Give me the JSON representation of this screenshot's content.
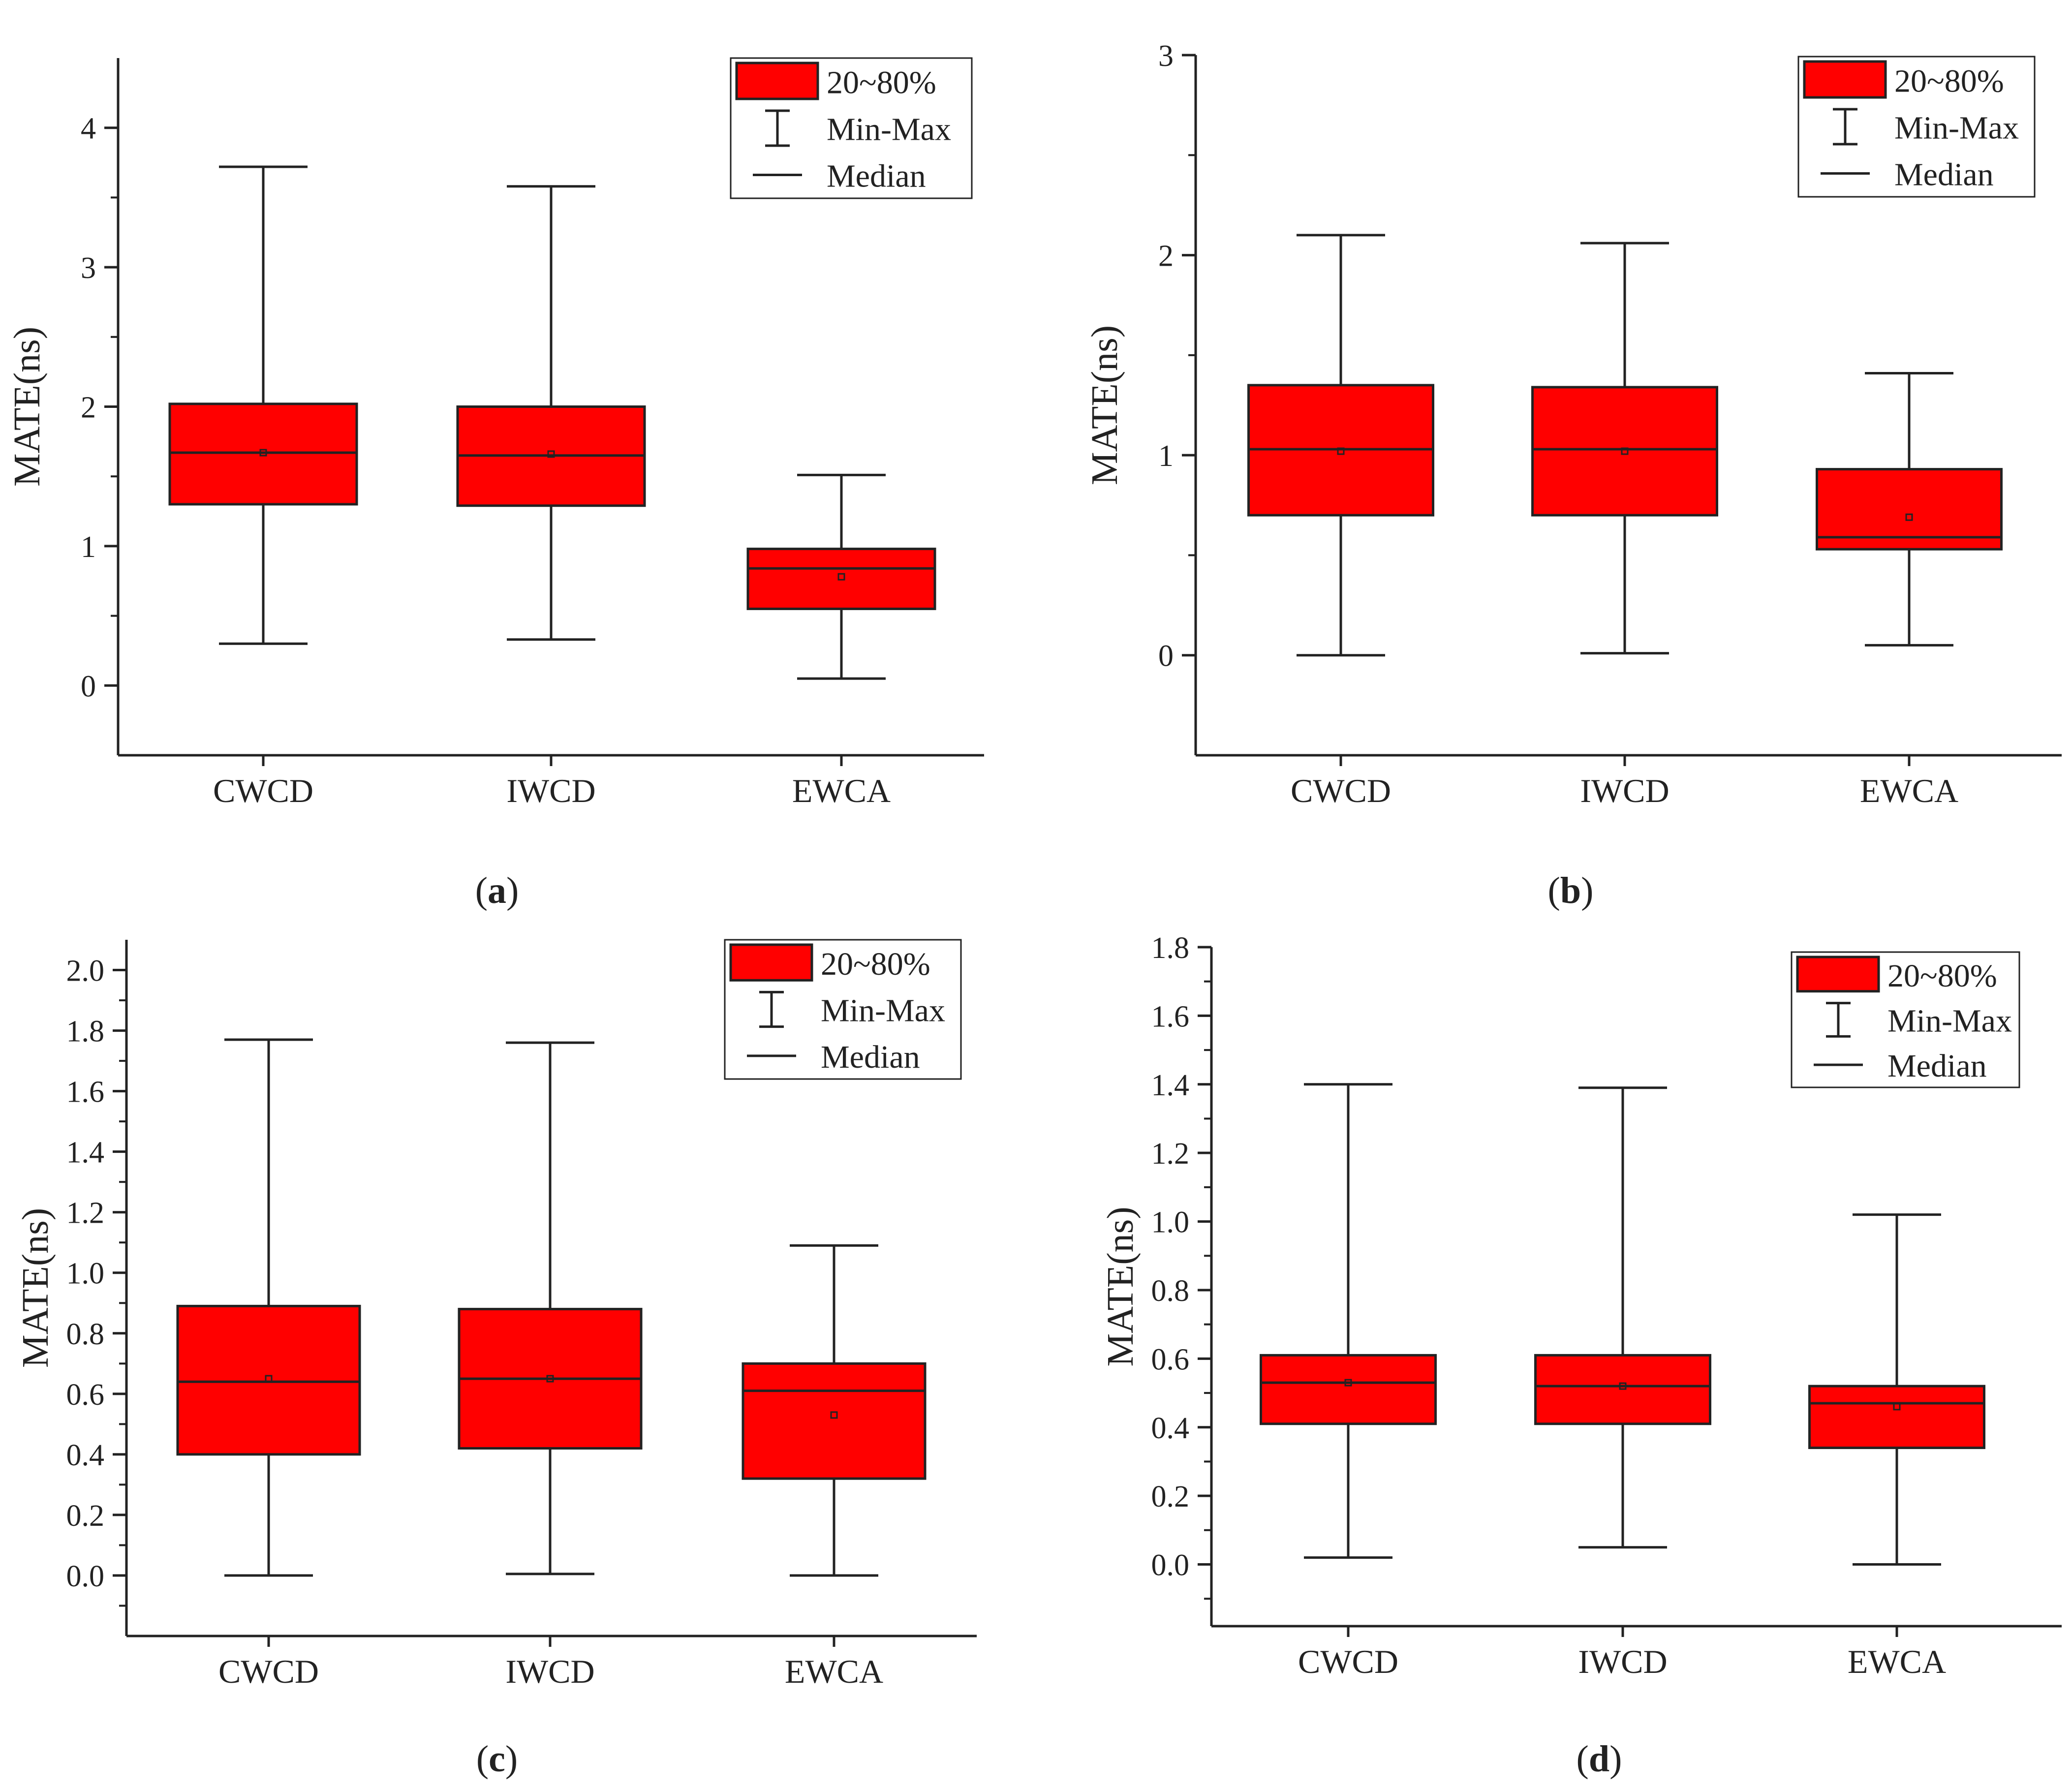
{
  "colors": {
    "box_fill": "#ff0000",
    "stroke": "#222222",
    "background": "#ffffff"
  },
  "chart_data": [
    {
      "type": "box",
      "panel_label": "a",
      "ylabel": "MATE(ns)",
      "xlabel": "",
      "ylim": [
        -0.5,
        4.5
      ],
      "yticks": [
        0,
        1,
        2,
        3,
        4
      ],
      "ytick_labels": [
        "0",
        "1",
        "2",
        "3",
        "4"
      ],
      "categories": [
        "CWCD",
        "IWCD",
        "EWCA"
      ],
      "boxes": [
        {
          "name": "CWCD",
          "min": 0.3,
          "q20": 1.3,
          "median": 1.67,
          "mean": 1.67,
          "q80": 2.02,
          "max": 3.72
        },
        {
          "name": "IWCD",
          "min": 0.33,
          "q20": 1.29,
          "median": 1.65,
          "mean": 1.66,
          "q80": 2.0,
          "max": 3.58
        },
        {
          "name": "EWCA",
          "min": 0.05,
          "q20": 0.55,
          "median": 0.84,
          "mean": 0.78,
          "q80": 0.98,
          "max": 1.51
        }
      ],
      "legend": {
        "position": "top-right",
        "items": [
          "20~80%",
          "Min-Max",
          "Median"
        ]
      }
    },
    {
      "type": "box",
      "panel_label": "b",
      "ylabel": "MATE(ns)",
      "xlabel": "",
      "ylim": [
        -0.5,
        3
      ],
      "yticks": [
        0,
        1,
        2,
        3
      ],
      "ytick_labels": [
        "0",
        "1",
        "2",
        "3"
      ],
      "categories": [
        "CWCD",
        "IWCD",
        "EWCA"
      ],
      "boxes": [
        {
          "name": "CWCD",
          "min": 0.0,
          "q20": 0.7,
          "median": 1.03,
          "mean": 1.02,
          "q80": 1.35,
          "max": 2.1
        },
        {
          "name": "IWCD",
          "min": 0.01,
          "q20": 0.7,
          "median": 1.03,
          "mean": 1.02,
          "q80": 1.34,
          "max": 2.06
        },
        {
          "name": "EWCA",
          "min": 0.05,
          "q20": 0.53,
          "median": 0.59,
          "mean": 0.69,
          "q80": 0.93,
          "max": 1.41
        }
      ],
      "legend": {
        "position": "top-right",
        "items": [
          "20~80%",
          "Min-Max",
          "Median"
        ]
      }
    },
    {
      "type": "box",
      "panel_label": "c",
      "ylabel": "MATE(ns)",
      "xlabel": "",
      "ylim": [
        -0.2,
        2.1
      ],
      "yticks": [
        0,
        0.2,
        0.4,
        0.6,
        0.8,
        1.0,
        1.2,
        1.4,
        1.6,
        1.8,
        2.0
      ],
      "ytick_labels": [
        "0.0",
        "0.2",
        "0.4",
        "0.6",
        "0.8",
        "1.0",
        "1.2",
        "1.4",
        "1.6",
        "1.8",
        "2.0"
      ],
      "categories": [
        "CWCD",
        "IWCD",
        "EWCA"
      ],
      "boxes": [
        {
          "name": "CWCD",
          "min": 0.0,
          "q20": 0.4,
          "median": 0.64,
          "mean": 0.65,
          "q80": 0.89,
          "max": 1.77
        },
        {
          "name": "IWCD",
          "min": 0.005,
          "q20": 0.42,
          "median": 0.65,
          "mean": 0.65,
          "q80": 0.88,
          "max": 1.76
        },
        {
          "name": "EWCA",
          "min": 0.0,
          "q20": 0.32,
          "median": 0.61,
          "mean": 0.53,
          "q80": 0.7,
          "max": 1.09
        }
      ],
      "legend": {
        "position": "top-right",
        "items": [
          "20~80%",
          "Min-Max",
          "Median"
        ]
      }
    },
    {
      "type": "box",
      "panel_label": "d",
      "ylabel": "MATE(ns)",
      "xlabel": "",
      "ylim": [
        -0.18,
        1.8
      ],
      "yticks": [
        0,
        0.2,
        0.4,
        0.6,
        0.8,
        1.0,
        1.2,
        1.4,
        1.6,
        1.8
      ],
      "ytick_labels": [
        "0.0",
        "0.2",
        "0.4",
        "0.6",
        "0.8",
        "1.0",
        "1.2",
        "1.4",
        "1.6",
        "1.8"
      ],
      "categories": [
        "CWCD",
        "IWCD",
        "EWCA"
      ],
      "boxes": [
        {
          "name": "CWCD",
          "min": 0.02,
          "q20": 0.41,
          "median": 0.53,
          "mean": 0.53,
          "q80": 0.61,
          "max": 1.4
        },
        {
          "name": "IWCD",
          "min": 0.05,
          "q20": 0.41,
          "median": 0.52,
          "mean": 0.52,
          "q80": 0.61,
          "max": 1.39
        },
        {
          "name": "EWCA",
          "min": 0.0,
          "q20": 0.34,
          "median": 0.47,
          "mean": 0.46,
          "q80": 0.52,
          "max": 1.02
        }
      ],
      "legend": {
        "position": "top-right",
        "items": [
          "20~80%",
          "Min-Max",
          "Median"
        ]
      }
    }
  ]
}
